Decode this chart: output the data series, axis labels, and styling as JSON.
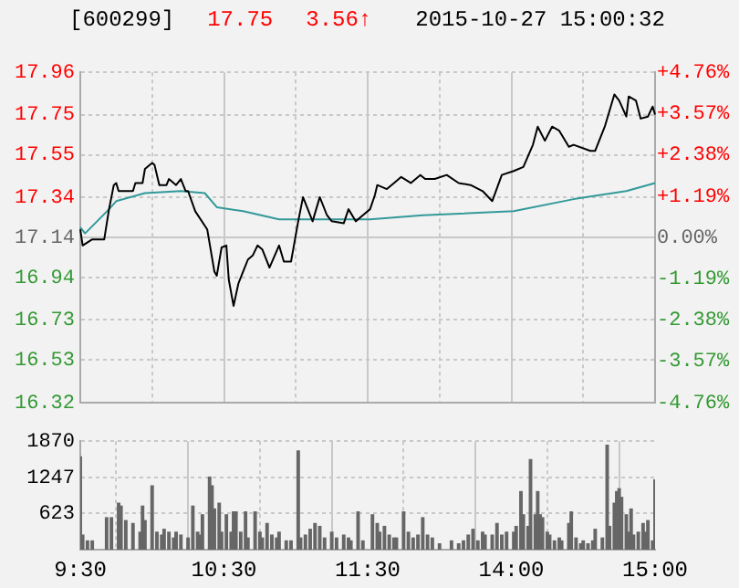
{
  "chart_data": [
    {
      "type": "line",
      "title": "[600299]",
      "annotations": [
        "17.75",
        "3.56↑",
        "2015-10-27 15:00:32"
      ],
      "marker": "none",
      "grid": true,
      "tick_labels": "y",
      "categories": [
        null,
        null,
        null,
        null,
        null,
        null,
        null,
        null,
        null,
        null,
        null,
        null,
        null,
        null,
        null,
        null,
        null,
        null,
        null,
        null,
        null,
        null,
        null,
        null,
        null,
        null,
        null,
        null,
        null,
        null,
        null,
        null,
        null,
        null,
        null,
        null,
        null,
        null,
        null,
        null,
        null,
        null,
        null,
        null,
        null,
        null,
        null,
        null,
        null,
        null,
        null,
        null,
        null,
        null,
        null,
        null,
        null,
        null,
        null,
        null,
        null,
        null,
        null,
        null,
        null,
        null,
        null,
        null,
        null,
        null,
        null,
        null,
        null,
        null,
        null,
        null,
        null,
        null,
        null,
        null,
        null,
        null,
        null,
        null,
        null,
        null,
        null,
        null,
        null,
        null,
        null,
        null,
        null,
        null,
        null,
        null,
        null,
        null,
        null,
        null,
        null,
        null,
        null,
        null,
        null,
        null,
        null,
        null,
        null,
        null,
        null,
        null,
        null,
        null,
        null,
        null,
        null,
        null,
        null,
        null,
        null,
        null,
        null,
        null,
        null,
        null,
        null,
        null,
        null,
        null,
        null,
        null,
        null,
        null,
        null,
        null,
        null,
        null,
        null,
        null,
        null,
        null,
        null,
        null,
        null,
        null,
        null,
        null,
        null,
        null,
        null,
        null,
        null,
        null,
        null,
        null,
        null,
        null,
        null,
        null,
        null,
        null,
        null,
        null,
        null,
        null,
        null,
        null,
        null,
        null,
        null,
        null,
        null,
        null,
        null,
        null,
        null,
        null,
        null,
        null,
        null,
        null,
        null,
        null,
        null,
        null,
        null,
        null,
        null,
        null,
        null,
        null,
        null,
        null,
        null,
        null,
        null,
        null,
        null,
        null,
        null,
        null,
        null,
        null,
        null,
        null,
        null,
        null,
        null,
        null,
        null,
        null,
        null,
        null,
        null,
        null,
        null,
        null,
        null,
        null,
        null,
        null,
        null,
        null,
        null,
        null,
        null,
        null,
        null,
        null,
        null,
        null,
        null,
        null,
        null,
        null,
        null,
        null,
        null,
        null,
        null
      ],
      "ylim": [
        16.32,
        17.96
      ],
      "yticks": [
        16.32,
        16.53,
        16.73,
        16.94,
        17.14,
        17.34,
        17.55,
        17.75,
        17.96
      ],
      "y2lim": [
        -4.76,
        4.76
      ],
      "y2ticks": [
        {
          "value": -4.76,
          "label": "-4.76%"
        },
        {
          "value": -3.57,
          "label": "-3.57%"
        },
        {
          "value": -2.38,
          "label": "-2.38%"
        },
        {
          "value": -1.19,
          "label": "-1.19%"
        },
        {
          "value": 0,
          "label": "0.00%"
        },
        {
          "value": 1.19,
          "label": "+1.19%"
        },
        {
          "value": 2.38,
          "label": "+2.38%"
        },
        {
          "value": 3.57,
          "label": "+3.57%"
        },
        {
          "value": 4.76,
          "label": "+4.76%"
        }
      ],
      "series": [
        {
          "color": "#000000",
          "values": [
            17.18,
            17.1,
            null,
            null,
            null,
            17.13,
            null,
            null,
            null,
            null,
            17.13,
            null,
            17.28,
            null,
            17.4,
            17.41,
            17.37,
            null,
            null,
            null,
            null,
            null,
            17.37,
            17.41,
            null,
            null,
            17.41,
            17.48,
            null,
            null,
            17.51,
            17.5,
            null,
            17.4,
            null,
            null,
            17.4,
            17.43,
            null,
            null,
            17.4,
            null,
            17.43,
            null,
            17.37,
            17.37,
            null,
            null,
            17.27,
            null,
            null,
            null,
            null,
            17.18,
            null,
            null,
            16.97,
            16.95,
            null,
            17.09,
            null,
            17.1,
            16.93,
            null,
            16.8,
            null,
            16.91,
            null,
            16.97,
            null,
            17.03,
            null,
            17.05,
            null,
            17.1,
            null,
            17.08,
            null,
            null,
            16.99,
            null,
            null,
            null,
            17.1,
            null,
            17.02,
            null,
            null,
            17.02,
            null,
            null,
            17.22,
            null,
            17.34,
            null,
            null,
            null,
            17.22,
            null,
            null,
            17.34,
            null,
            null,
            17.25,
            null,
            17.22,
            null,
            null,
            null,
            null,
            17.21,
            null,
            17.28,
            null,
            null,
            17.22,
            null,
            null,
            17.25,
            null,
            null,
            17.28,
            null,
            17.35,
            17.4,
            null,
            null,
            null,
            17.38,
            null,
            null,
            17.41,
            null,
            null,
            17.44,
            null,
            null,
            null,
            17.41,
            null,
            null,
            null,
            17.45,
            null,
            17.43,
            null,
            null,
            null,
            17.43,
            null,
            null,
            null,
            null,
            17.45,
            null,
            null,
            null,
            null,
            17.41,
            null,
            null,
            null,
            null,
            17.4,
            null,
            null,
            null,
            null,
            17.37,
            null,
            null,
            null,
            17.32,
            null,
            null,
            null,
            17.45,
            null,
            null,
            null,
            null,
            17.47,
            null,
            null,
            null,
            17.49,
            null,
            null,
            null,
            17.6,
            null,
            17.69,
            null,
            null,
            17.62,
            null,
            null,
            17.69,
            null,
            null,
            17.67,
            null,
            null,
            null,
            17.59,
            null,
            17.6,
            null,
            null,
            null,
            null,
            null,
            null,
            17.57,
            null,
            17.57,
            null,
            null,
            null,
            17.69,
            null,
            null,
            null,
            17.85,
            null,
            17.82,
            null,
            null,
            17.74,
            17.84,
            null,
            null,
            17.82,
            null,
            17.73,
            null,
            null,
            17.74,
            null,
            17.79,
            17.75
          ]
        },
        {
          "color": "#339999",
          "values": [
            17.19,
            null,
            17.16,
            null,
            null,
            null,
            null,
            null,
            null,
            null,
            null,
            null,
            17.28,
            null,
            null,
            17.32,
            null,
            null,
            null,
            null,
            null,
            null,
            null,
            null,
            null,
            null,
            null,
            17.36,
            null,
            null,
            null,
            null,
            null,
            null,
            null,
            null,
            null,
            null,
            null,
            null,
            null,
            null,
            17.37,
            null,
            null,
            null,
            null,
            null,
            null,
            null,
            null,
            null,
            17.36,
            null,
            null,
            null,
            null,
            17.29,
            null,
            null,
            null,
            null,
            null,
            null,
            null,
            null,
            null,
            null,
            17.27,
            null,
            null,
            null,
            null,
            null,
            null,
            null,
            null,
            null,
            null,
            null,
            null,
            null,
            null,
            17.23,
            null,
            null,
            null,
            null,
            null,
            null,
            null,
            null,
            null,
            null,
            null,
            null,
            null,
            null,
            17.23,
            null,
            null,
            null,
            null,
            null,
            null,
            null,
            null,
            null,
            null,
            null,
            null,
            null,
            null,
            null,
            null,
            null,
            null,
            null,
            null,
            null,
            null,
            17.23,
            null,
            null,
            null,
            null,
            null,
            null,
            null,
            null,
            null,
            null,
            null,
            null,
            null,
            null,
            null,
            null,
            null,
            null,
            null,
            null,
            null,
            17.25,
            null,
            null,
            null,
            null,
            null,
            null,
            null,
            null,
            null,
            null,
            null,
            null,
            null,
            null,
            null,
            null,
            null,
            null,
            null,
            null,
            null,
            null,
            null,
            null,
            null,
            null,
            null,
            null,
            null,
            null,
            null,
            null,
            null,
            null,
            null,
            null,
            null,
            17.27,
            null,
            null,
            null,
            null,
            null,
            null,
            null,
            null,
            null,
            null,
            null,
            null,
            null,
            null,
            null,
            null,
            null,
            null,
            null,
            null,
            null,
            null,
            null,
            null,
            17.33,
            null,
            null,
            null,
            null,
            null,
            null,
            null,
            null,
            null,
            null,
            null,
            null,
            null,
            null,
            null,
            null,
            null,
            null,
            null,
            null,
            null,
            17.37,
            null,
            null,
            null,
            null,
            null,
            null,
            null,
            null,
            null,
            null,
            null,
            17.41
          ]
        }
      ]
    },
    {
      "type": "bar",
      "grid": true,
      "categories": [
        "9:30",
        null,
        null,
        null,
        null,
        null,
        null,
        null,
        null,
        null,
        null,
        null,
        null,
        null,
        null,
        null,
        null,
        null,
        null,
        null,
        null,
        null,
        null,
        null,
        null,
        null,
        null,
        null,
        null,
        null,
        null,
        null,
        null,
        null,
        null,
        null,
        null,
        null,
        null,
        null,
        null,
        null,
        null,
        null,
        null,
        null,
        null,
        null,
        null,
        null,
        null,
        null,
        null,
        null,
        null,
        null,
        null,
        null,
        null,
        null,
        "10:30",
        null,
        null,
        null,
        null,
        null,
        null,
        null,
        null,
        null,
        null,
        null,
        null,
        null,
        null,
        null,
        null,
        null,
        null,
        null,
        null,
        null,
        null,
        null,
        null,
        null,
        null,
        null,
        null,
        null,
        null,
        null,
        null,
        null,
        null,
        null,
        null,
        null,
        null,
        null,
        null,
        null,
        null,
        null,
        null,
        null,
        null,
        null,
        null,
        null,
        null,
        null,
        null,
        null,
        null,
        null,
        null,
        null,
        null,
        null,
        "11:30",
        null,
        null,
        null,
        null,
        null,
        null,
        null,
        null,
        null,
        null,
        null,
        null,
        null,
        null,
        null,
        null,
        null,
        null,
        null,
        null,
        null,
        null,
        null,
        null,
        null,
        null,
        null,
        null,
        null,
        null,
        null,
        null,
        null,
        null,
        null,
        null,
        null,
        null,
        null,
        null,
        null,
        null,
        null,
        null,
        null,
        null,
        null,
        null,
        null,
        null,
        null,
        null,
        null,
        null,
        null,
        null,
        null,
        null,
        null,
        "14:00",
        null,
        null,
        null,
        null,
        null,
        null,
        null,
        null,
        null,
        null,
        null,
        null,
        null,
        null,
        null,
        null,
        null,
        null,
        null,
        null,
        null,
        null,
        null,
        null,
        null,
        null,
        null,
        null,
        null,
        null,
        null,
        null,
        null,
        null,
        null,
        null,
        null,
        null,
        null,
        null,
        null,
        null,
        null,
        null,
        null,
        null,
        null,
        null,
        null,
        null,
        null,
        null,
        null,
        null,
        null,
        null,
        null,
        null,
        null,
        "15:00"
      ],
      "ylim": [
        0,
        1870
      ],
      "yticks": [
        623,
        1247,
        1870
      ],
      "series": [
        {
          "color": "#666666",
          "values": [
            1600,
            250,
            null,
            150,
            null,
            150,
            null,
            null,
            null,
            null,
            null,
            550,
            null,
            550,
            null,
            null,
            800,
            750,
            null,
            500,
            null,
            null,
            450,
            null,
            null,
            300,
            750,
            500,
            null,
            null,
            1100,
            null,
            300,
            null,
            250,
            350,
            null,
            300,
            null,
            200,
            300,
            null,
            250,
            null,
            null,
            200,
            null,
            750,
            null,
            300,
            250,
            600,
            null,
            null,
            1250,
            1100,
            700,
            null,
            800,
            300,
            null,
            600,
            null,
            300,
            650,
            650,
            null,
            300,
            null,
            650,
            200,
            null,
            null,
            650,
            null,
            300,
            200,
            null,
            450,
            null,
            250,
            null,
            200,
            300,
            null,
            null,
            150,
            null,
            150,
            null,
            null,
            1700,
            200,
            null,
            250,
            null,
            350,
            null,
            450,
            null,
            400,
            null,
            200,
            null,
            null,
            300,
            null,
            200,
            null,
            null,
            250,
            null,
            200,
            150,
            null,
            null,
            650,
            null,
            150,
            null,
            null,
            null,
            600,
            null,
            450,
            300,
            null,
            400,
            null,
            250,
            null,
            200,
            200,
            null,
            null,
            650,
            null,
            300,
            null,
            200,
            null,
            250,
            null,
            550,
            null,
            250,
            null,
            200,
            null,
            null,
            100,
            null,
            null,
            null,
            null,
            150,
            null,
            null,
            100,
            null,
            150,
            null,
            250,
            null,
            350,
            null,
            150,
            null,
            300,
            250,
            null,
            null,
            250,
            null,
            450,
            null,
            250,
            null,
            300,
            null,
            null,
            300,
            400,
            null,
            1000,
            600,
            null,
            400,
            1550,
            null,
            600,
            1000,
            600,
            550,
            null,
            300,
            250,
            null,
            150,
            null,
            200,
            150,
            null,
            null,
            450,
            650,
            null,
            200,
            null,
            100,
            150,
            null,
            100,
            null,
            150,
            350,
            null,
            null,
            200,
            null,
            1800,
            400,
            null,
            800,
            1000,
            1050,
            900,
            null,
            600,
            300,
            700,
            250,
            null,
            300,
            null,
            450,
            300,
            500,
            null,
            150,
            1200
          ]
        }
      ]
    }
  ]
}
